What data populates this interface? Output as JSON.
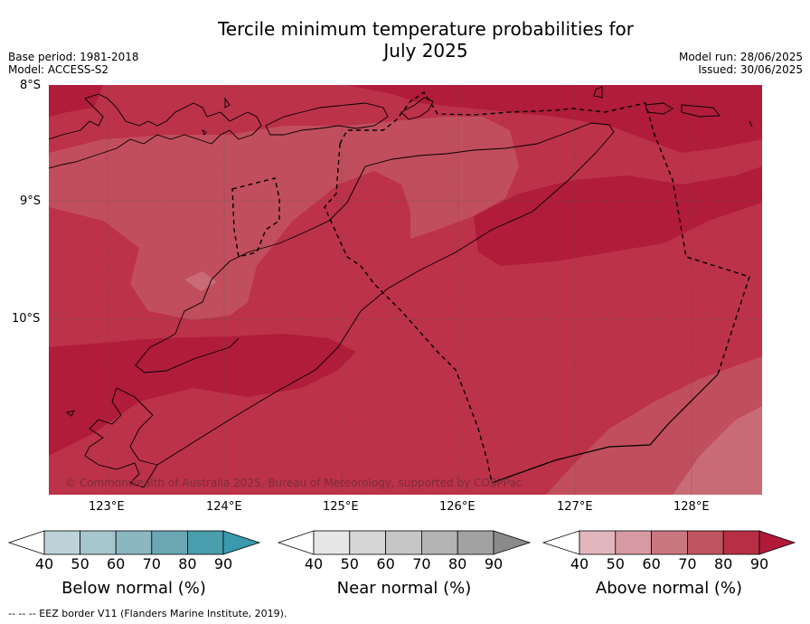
{
  "title_line1": "Tercile minimum temperature probabilities for",
  "title_line2": "July 2025",
  "base_period": "Base period: 1981-2018",
  "model": "Model: ACCESS-S2",
  "model_run": "Model run: 28/06/2025",
  "issued": "Issued: 30/06/2025",
  "lat_labels": [
    "8°S",
    "9°S",
    "10°S"
  ],
  "lon_labels": [
    "123°E",
    "124°E",
    "125°E",
    "126°E",
    "127°E",
    "128°E"
  ],
  "copyright": "© Commonwealth of Australia 2025, Bureau of Meteorology, supported by COSPPac",
  "colorbars": [
    {
      "title": "Below normal (%)",
      "ticks": [
        "40",
        "50",
        "60",
        "70",
        "80",
        "90"
      ],
      "colors": [
        "#ffffff",
        "#bdd3d9",
        "#a6c6cd",
        "#8ab7c0",
        "#6aa7b3",
        "#4a9dac",
        "#3a9aad"
      ]
    },
    {
      "title": "Near normal (%)",
      "ticks": [
        "40",
        "50",
        "60",
        "70",
        "80",
        "90"
      ],
      "colors": [
        "#ffffff",
        "#e6e6e6",
        "#d6d6d6",
        "#c6c6c6",
        "#b4b4b4",
        "#a2a2a2",
        "#8a8a8a"
      ]
    },
    {
      "title": "Above normal (%)",
      "ticks": [
        "40",
        "50",
        "60",
        "70",
        "80",
        "90"
      ],
      "colors": [
        "#ffffff",
        "#e2b6bd",
        "#d79aa2",
        "#cb7780",
        "#c05460",
        "#b82f45",
        "#b01a38"
      ]
    }
  ],
  "footnote": "-- -- -- EEZ border V11 (Flanders Marine Institute, 2019).",
  "map_colors": {
    "p90": "#b01c3a",
    "p80": "#bc3249",
    "p70": "#c14e5c",
    "p60": "#c96b77"
  }
}
